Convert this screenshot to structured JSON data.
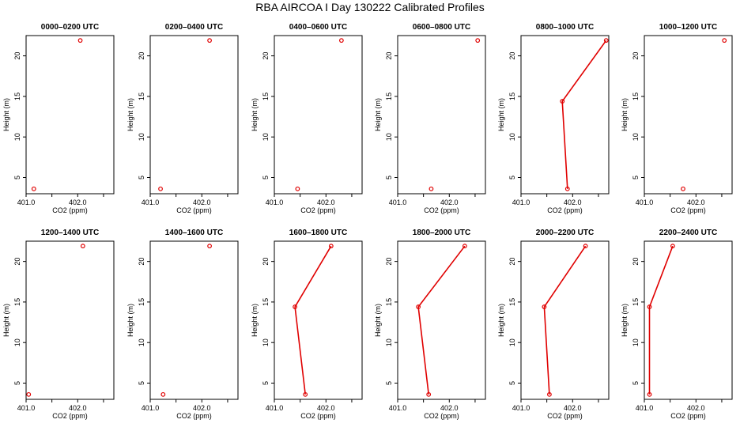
{
  "figure": {
    "title": "RBA AIRCOA I  Day 130222  Calibrated Profiles",
    "marker_color": "#e00000",
    "axis_color": "#000000"
  },
  "chart_data": {
    "type": "line",
    "xlabel": "CO2 (ppm)",
    "ylabel": "Height (m)",
    "xlim": [
      401.0,
      402.7
    ],
    "ylim": [
      3.0,
      22.5
    ],
    "xticks": [
      401.0,
      401.5,
      402.0,
      402.5
    ],
    "xtick_labels": [
      "401.0",
      "",
      "402.0",
      ""
    ],
    "yticks": [
      5,
      10,
      15,
      20
    ],
    "ytick_labels": [
      "5",
      "10",
      "15",
      "20"
    ],
    "panels": [
      {
        "title": "0000–0200 UTC",
        "points": [
          [
            401.15,
            3.6
          ],
          [
            402.05,
            21.9
          ]
        ],
        "connected": false
      },
      {
        "title": "0200–0400 UTC",
        "points": [
          [
            401.2,
            3.6
          ],
          [
            402.15,
            21.9
          ]
        ],
        "connected": false
      },
      {
        "title": "0400–0600 UTC",
        "points": [
          [
            401.45,
            3.6
          ],
          [
            402.3,
            21.9
          ]
        ],
        "connected": false
      },
      {
        "title": "0600–0800 UTC",
        "points": [
          [
            401.65,
            3.6
          ],
          [
            402.55,
            21.9
          ]
        ],
        "connected": false
      },
      {
        "title": "0800–1000 UTC",
        "points": [
          [
            401.9,
            3.6
          ],
          [
            401.8,
            14.4
          ],
          [
            402.65,
            21.9
          ]
        ],
        "connected": true
      },
      {
        "title": "1000–1200 UTC",
        "points": [
          [
            401.75,
            3.6
          ],
          [
            402.55,
            21.9
          ]
        ],
        "connected": false
      },
      {
        "title": "1200–1400 UTC",
        "points": [
          [
            401.05,
            3.6
          ],
          [
            402.1,
            21.9
          ]
        ],
        "connected": false
      },
      {
        "title": "1400–1600 UTC",
        "points": [
          [
            401.25,
            3.6
          ],
          [
            402.15,
            21.9
          ]
        ],
        "connected": false
      },
      {
        "title": "1600–1800 UTC",
        "points": [
          [
            401.6,
            3.6
          ],
          [
            401.4,
            14.4
          ],
          [
            402.1,
            21.9
          ]
        ],
        "connected": true
      },
      {
        "title": "1800–2000 UTC",
        "points": [
          [
            401.6,
            3.6
          ],
          [
            401.4,
            14.4
          ],
          [
            402.3,
            21.9
          ]
        ],
        "connected": true
      },
      {
        "title": "2000–2200 UTC",
        "points": [
          [
            401.55,
            3.6
          ],
          [
            401.45,
            14.4
          ],
          [
            402.25,
            21.9
          ]
        ],
        "connected": true
      },
      {
        "title": "2200–2400 UTC",
        "points": [
          [
            401.1,
            3.6
          ],
          [
            401.1,
            14.4
          ],
          [
            401.55,
            21.9
          ]
        ],
        "connected": true
      }
    ]
  }
}
